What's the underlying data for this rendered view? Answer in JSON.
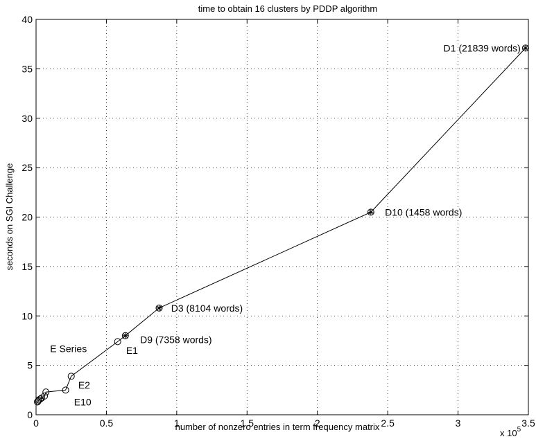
{
  "chart_data": {
    "type": "line",
    "title": "time to obtain 16 clusters by PDDP algorithm",
    "xlabel": "number of nonzero entries in term frequency matrix",
    "ylabel": "seconds on SGI Challenge",
    "x_multiplier": "x 10",
    "x_multiplier_exp": "5",
    "xlim": [
      0,
      3.5
    ],
    "ylim": [
      0,
      40
    ],
    "x_ticks": [
      {
        "value": 0,
        "label": "0"
      },
      {
        "value": 0.5,
        "label": "0.5"
      },
      {
        "value": 1,
        "label": "1"
      },
      {
        "value": 1.5,
        "label": "1.5"
      },
      {
        "value": 2,
        "label": "2"
      },
      {
        "value": 2.5,
        "label": "2.5"
      },
      {
        "value": 3,
        "label": "3"
      },
      {
        "value": 3.5,
        "label": "3.5"
      }
    ],
    "y_ticks": [
      {
        "value": 0,
        "label": "0"
      },
      {
        "value": 5,
        "label": "5"
      },
      {
        "value": 10,
        "label": "10"
      },
      {
        "value": 15,
        "label": "15"
      },
      {
        "value": 20,
        "label": "20"
      },
      {
        "value": 25,
        "label": "25"
      },
      {
        "value": 30,
        "label": "30"
      },
      {
        "value": 35,
        "label": "35"
      },
      {
        "value": 40,
        "label": "40"
      }
    ],
    "grid": true,
    "series": [
      {
        "line": true,
        "points": [
          {
            "x": 0.01,
            "y": 1.3,
            "marker": "circle"
          },
          {
            "x": 0.015,
            "y": 1.4,
            "marker": "circle"
          },
          {
            "x": 0.02,
            "y": 1.5,
            "marker": "circle"
          },
          {
            "x": 0.03,
            "y": 1.6,
            "marker": "circle"
          },
          {
            "x": 0.04,
            "y": 1.7,
            "marker": "circle"
          },
          {
            "x": 0.06,
            "y": 1.9,
            "marker": "circle"
          },
          {
            "x": 0.07,
            "y": 2.3,
            "marker": "circle"
          },
          {
            "x": 0.21,
            "y": 2.5,
            "marker": "circle"
          },
          {
            "x": 0.25,
            "y": 3.9,
            "marker": "circle"
          },
          {
            "x": 0.58,
            "y": 7.4,
            "marker": "circle"
          },
          {
            "x": 0.635,
            "y": 8.0,
            "marker": "circle-star"
          },
          {
            "x": 0.875,
            "y": 10.8,
            "marker": "circle-star"
          },
          {
            "x": 2.38,
            "y": 20.5,
            "marker": "circle-star"
          },
          {
            "x": 3.48,
            "y": 37.1,
            "marker": "circle-star"
          }
        ]
      }
    ],
    "annotations": [
      {
        "text": "D1 (21839 words)",
        "x": 3.445,
        "y": 37.1,
        "anchor": "end"
      },
      {
        "text": "D10 (1458 words)",
        "x": 2.48,
        "y": 20.5,
        "anchor": "start"
      },
      {
        "text": "D3 (8104 words)",
        "x": 0.96,
        "y": 10.8,
        "anchor": "start"
      },
      {
        "text": "D9 (7358 words)",
        "x": 0.74,
        "y": 7.6,
        "anchor": "start"
      },
      {
        "text": "E1",
        "x": 0.64,
        "y": 6.5,
        "anchor": "start"
      },
      {
        "text": "E Series",
        "x": 0.1,
        "y": 6.7,
        "anchor": "start"
      },
      {
        "text": "E2",
        "x": 0.3,
        "y": 3.0,
        "anchor": "start"
      },
      {
        "text": "E10",
        "x": 0.27,
        "y": 1.3,
        "anchor": "start"
      }
    ]
  }
}
